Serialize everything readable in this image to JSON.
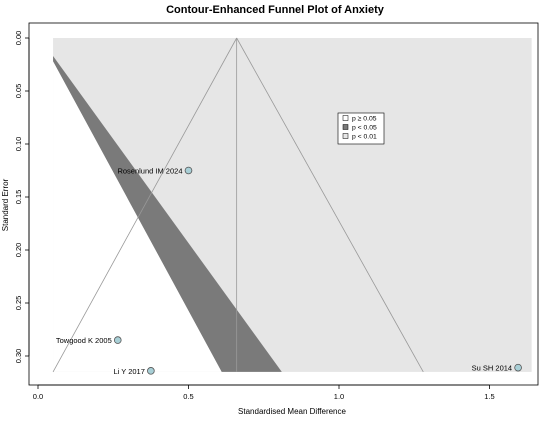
{
  "chart_data": {
    "type": "scatter",
    "title": "Contour-Enhanced Funnel Plot of Anxiety",
    "xlabel": "Standardised Mean Difference",
    "ylabel": "Standard Error",
    "xlim": [
      0.0,
      1.67
    ],
    "ylim": [
      0.0,
      0.315
    ],
    "y_reversed": true,
    "x_ticks": [
      "0.0",
      "0.5",
      "1.0",
      "1.5"
    ],
    "y_ticks": [
      "0.00",
      "0.05",
      "0.10",
      "0.15",
      "0.20",
      "0.25",
      "0.30"
    ],
    "pooled_estimate": 0.66,
    "grid": false,
    "legend_position": "upper-middle-right",
    "legend": [
      {
        "label": "p ≥ 0.05",
        "color": "#ffffff"
      },
      {
        "label": "p < 0.05",
        "color": "#7a7a7a"
      },
      {
        "label": "p < 0.01",
        "color": "#e6e6e6"
      }
    ],
    "points": [
      {
        "label": "Rosenlund IM 2024",
        "x": 0.5,
        "y": 0.125
      },
      {
        "label": "Towgood K 2005",
        "x": 0.265,
        "y": 0.285
      },
      {
        "label": "Li Y 2017",
        "x": 0.375,
        "y": 0.314
      },
      {
        "label": "Su SH 2014",
        "x": 1.595,
        "y": 0.311
      }
    ],
    "colors": {
      "region_p01": "#e6e6e6",
      "region_p05": "#7a7a7a",
      "funnel_line": "#999999",
      "point_fill": "#a8cfd6",
      "point_stroke": "#555555"
    }
  }
}
